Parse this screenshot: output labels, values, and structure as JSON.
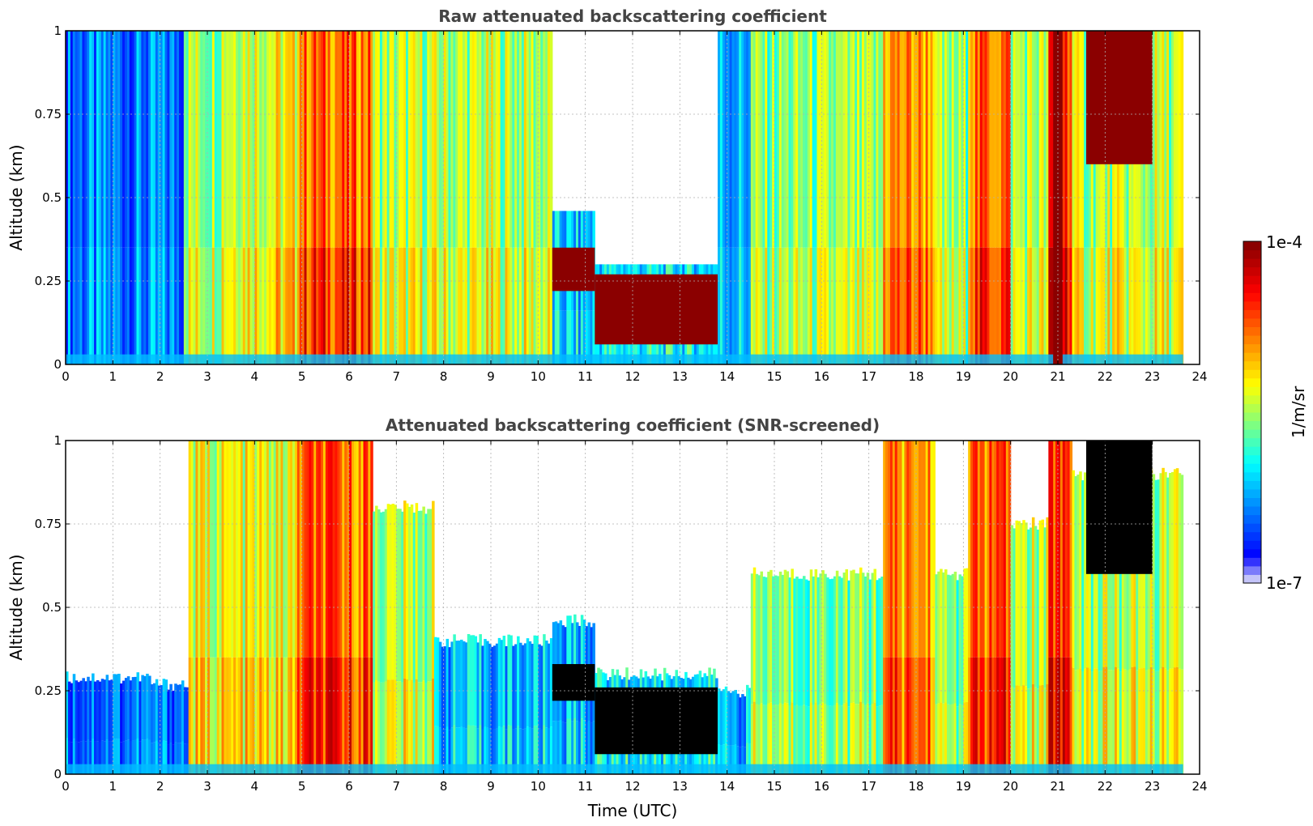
{
  "chart_data": [
    {
      "type": "heatmap",
      "title": "Raw attenuated backscattering coefficient",
      "xlabel": "",
      "ylabel": "Altitude (km)",
      "xlim": [
        0,
        24
      ],
      "ylim": [
        0,
        1
      ],
      "xticks": [
        "0",
        "1",
        "2",
        "3",
        "4",
        "5",
        "6",
        "7",
        "8",
        "9",
        "10",
        "11",
        "12",
        "13",
        "14",
        "15",
        "16",
        "17",
        "18",
        "19",
        "20",
        "21",
        "22",
        "23",
        "24"
      ],
      "yticks": [
        "0",
        "0.25",
        "0.5",
        "0.75",
        "1"
      ],
      "grid": true,
      "screened": false,
      "data_end_x": 23.65,
      "column_tops": [
        {
          "x0": 0,
          "x1": 2.5,
          "top": 1,
          "level": 0.22
        },
        {
          "x0": 2.5,
          "x1": 3.3,
          "top": 1,
          "level": 0.55
        },
        {
          "x0": 3.3,
          "x1": 4.9,
          "top": 1,
          "level": 0.62
        },
        {
          "x0": 4.9,
          "x1": 6.5,
          "top": 1,
          "level": 0.8
        },
        {
          "x0": 6.5,
          "x1": 10.3,
          "top": 1,
          "level": 0.55
        },
        {
          "x0": 10.3,
          "x1": 11.2,
          "top": 0.46,
          "level": 0.3
        },
        {
          "x0": 11.2,
          "x1": 13.8,
          "top": 0.3,
          "level": 0.35
        },
        {
          "x0": 13.8,
          "x1": 14.5,
          "top": 1,
          "level": 0.3
        },
        {
          "x0": 14.5,
          "x1": 17.3,
          "top": 1,
          "level": 0.5
        },
        {
          "x0": 17.3,
          "x1": 18.4,
          "top": 1,
          "level": 0.75
        },
        {
          "x0": 18.4,
          "x1": 19.1,
          "top": 1,
          "level": 0.5
        },
        {
          "x0": 19.1,
          "x1": 20.0,
          "top": 1,
          "level": 0.8
        },
        {
          "x0": 20.0,
          "x1": 20.8,
          "top": 1,
          "level": 0.55
        },
        {
          "x0": 20.8,
          "x1": 21.3,
          "top": 1,
          "level": 0.9
        },
        {
          "x0": 21.3,
          "x1": 23.65,
          "top": 1,
          "level": 0.55
        }
      ],
      "dense_cloud": [
        {
          "x0": 10.3,
          "x1": 11.2,
          "y0": 0.22,
          "y1": 0.35
        },
        {
          "x0": 11.2,
          "x1": 13.8,
          "y0": 0.06,
          "y1": 0.27
        },
        {
          "x0": 20.9,
          "x1": 21.1,
          "y0": 0.0,
          "y1": 1.0
        },
        {
          "x0": 21.6,
          "x1": 23.0,
          "y0": 0.6,
          "y1": 1.0
        }
      ]
    },
    {
      "type": "heatmap",
      "title": "Attenuated backscattering coefficient (SNR-screened)",
      "xlabel": "Time (UTC)",
      "ylabel": "Altitude (km)",
      "xlim": [
        0,
        24
      ],
      "ylim": [
        0,
        1
      ],
      "xticks": [
        "0",
        "1",
        "2",
        "3",
        "4",
        "5",
        "6",
        "7",
        "8",
        "9",
        "10",
        "11",
        "12",
        "13",
        "14",
        "15",
        "16",
        "17",
        "18",
        "19",
        "20",
        "21",
        "22",
        "23",
        "24"
      ],
      "yticks": [
        "0",
        "0.25",
        "0.5",
        "0.75",
        "1"
      ],
      "grid": true,
      "screened": true,
      "data_end_x": 23.65,
      "column_tops": [
        {
          "x0": 0,
          "x1": 1.8,
          "top": 0.29,
          "level": 0.22
        },
        {
          "x0": 1.8,
          "x1": 3.1,
          "top": 0.27,
          "level": 0.22
        },
        {
          "x0": 3.1,
          "x1": 3.4,
          "top": 0.38,
          "level": 0.35
        },
        {
          "x0": 2.6,
          "x1": 4.9,
          "top": 1,
          "level": 0.6
        },
        {
          "x0": 4.9,
          "x1": 6.5,
          "top": 1,
          "level": 0.8
        },
        {
          "x0": 6.5,
          "x1": 7.8,
          "top": 0.8,
          "level": 0.55
        },
        {
          "x0": 7.8,
          "x1": 10.3,
          "top": 0.4,
          "level": 0.3
        },
        {
          "x0": 10.3,
          "x1": 11.2,
          "top": 0.46,
          "level": 0.3
        },
        {
          "x0": 11.2,
          "x1": 13.8,
          "top": 0.3,
          "level": 0.35
        },
        {
          "x0": 13.8,
          "x1": 14.5,
          "top": 0.25,
          "level": 0.3
        },
        {
          "x0": 14.5,
          "x1": 17.3,
          "top": 0.6,
          "level": 0.5
        },
        {
          "x0": 17.3,
          "x1": 18.4,
          "top": 1,
          "level": 0.75
        },
        {
          "x0": 18.4,
          "x1": 19.1,
          "top": 0.6,
          "level": 0.5
        },
        {
          "x0": 19.1,
          "x1": 20.0,
          "top": 1,
          "level": 0.8
        },
        {
          "x0": 20.0,
          "x1": 20.8,
          "top": 0.75,
          "level": 0.55
        },
        {
          "x0": 20.8,
          "x1": 21.3,
          "top": 1,
          "level": 0.9
        },
        {
          "x0": 21.3,
          "x1": 23.65,
          "top": 0.9,
          "level": 0.55
        }
      ],
      "dense_cloud": [
        {
          "x0": 10.3,
          "x1": 11.2,
          "y0": 0.22,
          "y1": 0.33
        },
        {
          "x0": 11.2,
          "x1": 13.8,
          "y0": 0.06,
          "y1": 0.26
        },
        {
          "x0": 21.6,
          "x1": 23.0,
          "y0": 0.6,
          "y1": 1.0
        }
      ]
    }
  ],
  "colorbar": {
    "label": "1/m/sr",
    "min_label": "1e-7",
    "max_label": "1e-4",
    "colors": [
      "#e8e8f8",
      "#0000ff",
      "#00ffff",
      "#ffff00",
      "#ff0000",
      "#800000"
    ],
    "saturated_color": "#000000",
    "background_color": "#ffffff"
  }
}
